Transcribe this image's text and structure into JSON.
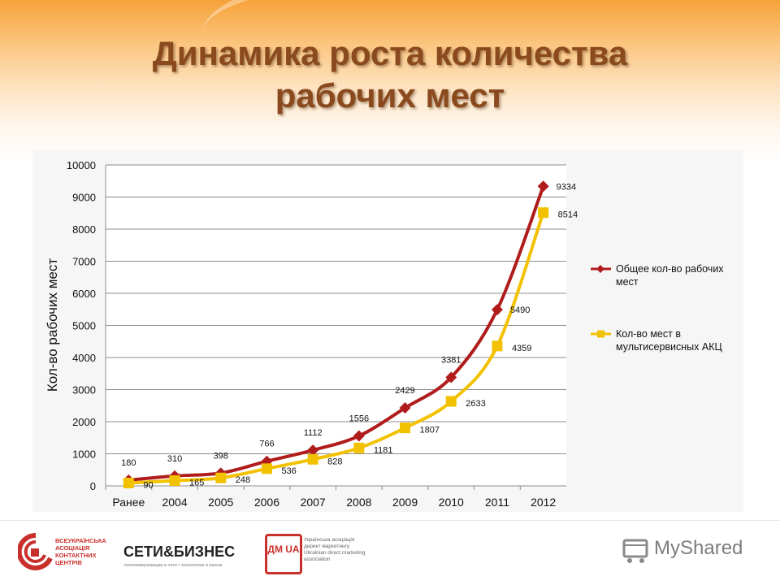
{
  "slide": {
    "title_line1": "Динамика роста количества",
    "title_line2": "рабочих мест"
  },
  "chart_data": {
    "type": "line",
    "ylabel": "Кол-во рабочих мест",
    "xlabel": "",
    "ylim": [
      0,
      10000
    ],
    "yticks": [
      0,
      1000,
      2000,
      3000,
      4000,
      5000,
      6000,
      7000,
      8000,
      9000,
      10000
    ],
    "grid": true,
    "legend_position": "right",
    "categories": [
      "Ранее",
      "2004",
      "2005",
      "2006",
      "2007",
      "2008",
      "2009",
      "2010",
      "2011",
      "2012"
    ],
    "series": [
      {
        "name": "Общее кол-во рабочих мест",
        "color": "#b01c1c",
        "marker": "diamond",
        "values": [
          180,
          310,
          398,
          766,
          1112,
          1556,
          2429,
          3381,
          5490,
          9334
        ]
      },
      {
        "name": "Кол-во мест в мультисервисных АКЦ",
        "color": "#f2c200",
        "marker": "square",
        "values": [
          90,
          165,
          248,
          536,
          828,
          1181,
          1807,
          2633,
          4359,
          8514
        ]
      }
    ]
  },
  "footer": {
    "logo1_lines": [
      "ВСЕУКРАЇНСЬКА",
      "АСОЦІАЦІЯ",
      "КОНТАКТНИХ",
      "ЦЕНТРІВ"
    ],
    "logo2_name": "СЕТИ&БИЗНЕС",
    "logo2_sub": "телекоммуникации и сети • технологии и рынок",
    "logo3_mark": "ДМ UA",
    "logo3_lines": [
      "Українська асоціація",
      "директ маркетингу",
      "Ukrainian direct marketing",
      "association"
    ],
    "logo4_name": "MyShared"
  }
}
